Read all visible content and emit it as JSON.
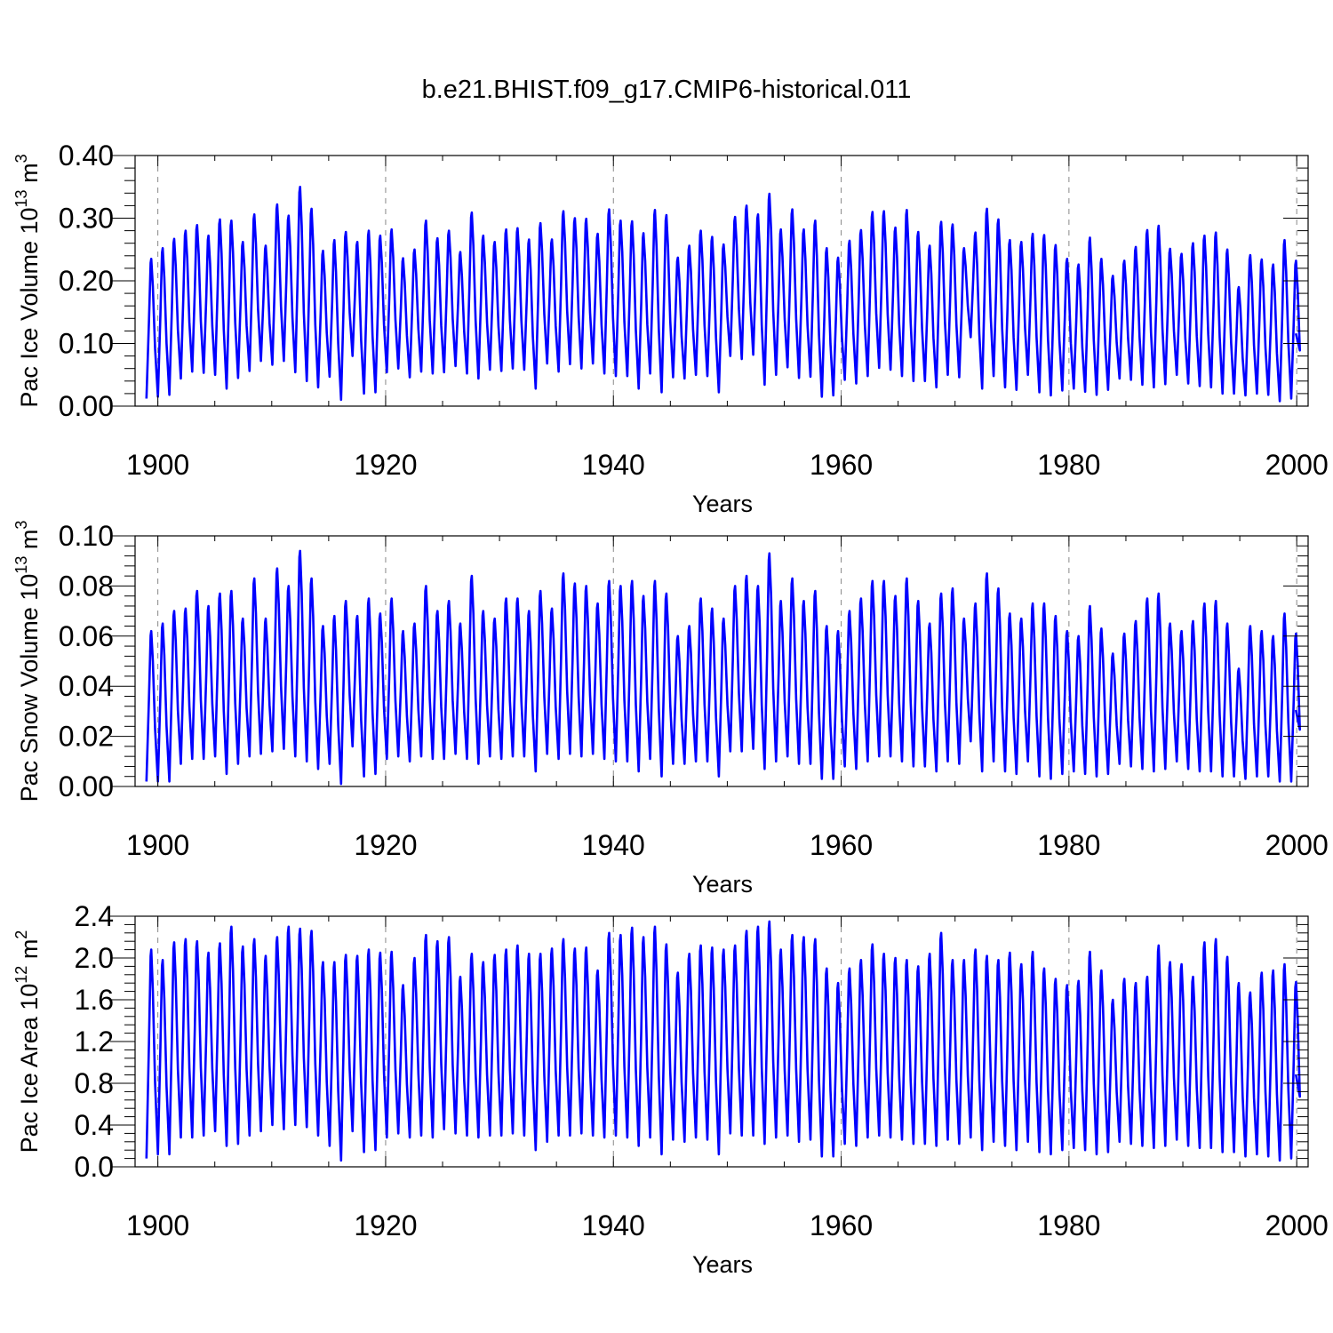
{
  "title": "b.e21.BHIST.f09_g17.CMIP6-historical.011",
  "line_color": "#0000ff",
  "chart_data": [
    {
      "type": "line",
      "xlabel": "Years",
      "ylabel_parts": {
        "text": "Pac Ice Volume 10",
        "exp": "13",
        "unit": " m",
        "unit_exp": "3"
      },
      "xlim": [
        1898,
        2001
      ],
      "ylim": [
        0,
        0.4
      ],
      "yticks": [
        0.0,
        0.1,
        0.2,
        0.3,
        0.4
      ],
      "ytick_labels": [
        "0.00",
        "0.10",
        "0.20",
        "0.30",
        "0.40"
      ],
      "xticks": [
        1900,
        1920,
        1940,
        1960,
        1980,
        2000
      ],
      "xtick_labels": [
        "1900",
        "1920",
        "1940",
        "1960",
        "1980",
        "2000"
      ],
      "grid": "x-dashed",
      "x_start": 1899.0,
      "x_end": 1999.92,
      "series": [
        {
          "peaks": [
            0.235,
            0.252,
            0.267,
            0.28,
            0.289,
            0.272,
            0.298,
            0.296,
            0.262,
            0.306,
            0.256,
            0.322,
            0.304,
            0.35,
            0.315,
            0.248,
            0.265,
            0.278,
            0.262,
            0.28,
            0.272,
            0.282,
            0.236,
            0.25,
            0.296,
            0.268,
            0.28,
            0.246,
            0.309,
            0.272,
            0.262,
            0.282,
            0.284,
            0.266,
            0.292,
            0.266,
            0.311,
            0.3,
            0.299,
            0.275,
            0.314,
            0.296,
            0.295,
            0.276,
            0.313,
            0.305,
            0.237,
            0.256,
            0.28,
            0.27,
            0.258,
            0.302,
            0.32,
            0.306,
            0.339,
            0.282,
            0.314,
            0.282,
            0.296,
            0.252,
            0.237,
            0.264,
            0.281,
            0.31,
            0.311,
            0.285,
            0.313,
            0.278,
            0.256,
            0.294,
            0.29,
            0.252,
            0.277,
            0.315,
            0.298,
            0.265,
            0.262,
            0.275,
            0.273,
            0.257,
            0.235,
            0.226,
            0.269,
            0.235,
            0.208,
            0.232,
            0.254,
            0.281,
            0.288,
            0.251,
            0.243,
            0.26,
            0.272,
            0.277,
            0.25,
            0.19,
            0.241,
            0.234,
            0.226,
            0.265,
            0.232
          ],
          "troughs": [
            0.012,
            0.015,
            0.018,
            0.044,
            0.055,
            0.053,
            0.05,
            0.028,
            0.045,
            0.056,
            0.072,
            0.066,
            0.072,
            0.054,
            0.04,
            0.03,
            0.047,
            0.01,
            0.08,
            0.02,
            0.022,
            0.054,
            0.06,
            0.046,
            0.055,
            0.052,
            0.054,
            0.064,
            0.052,
            0.044,
            0.058,
            0.056,
            0.06,
            0.058,
            0.028,
            0.068,
            0.055,
            0.067,
            0.06,
            0.068,
            0.052,
            0.048,
            0.048,
            0.028,
            0.052,
            0.022,
            0.046,
            0.044,
            0.05,
            0.048,
            0.022,
            0.08,
            0.075,
            0.082,
            0.034,
            0.05,
            0.062,
            0.045,
            0.047,
            0.015,
            0.017,
            0.042,
            0.036,
            0.048,
            0.061,
            0.058,
            0.048,
            0.04,
            0.04,
            0.03,
            0.05,
            0.046,
            0.11,
            0.028,
            0.048,
            0.03,
            0.026,
            0.05,
            0.022,
            0.017,
            0.025,
            0.028,
            0.023,
            0.018,
            0.026,
            0.044,
            0.042,
            0.034,
            0.03,
            0.035,
            0.05,
            0.036,
            0.032,
            0.03,
            0.02,
            0.02,
            0.017,
            0.02,
            0.018,
            0.008,
            0.012
          ]
        }
      ]
    },
    {
      "type": "line",
      "xlabel": "Years",
      "ylabel_parts": {
        "text": "Pac Snow Volume 10",
        "exp": "13",
        "unit": " m",
        "unit_exp": "3"
      },
      "xlim": [
        1898,
        2001
      ],
      "ylim": [
        0,
        0.1
      ],
      "yticks": [
        0.0,
        0.02,
        0.04,
        0.06,
        0.08,
        0.1
      ],
      "ytick_labels": [
        "0.00",
        "0.02",
        "0.04",
        "0.06",
        "0.08",
        "0.10"
      ],
      "xticks": [
        1900,
        1920,
        1940,
        1960,
        1980,
        2000
      ],
      "xtick_labels": [
        "1900",
        "1920",
        "1940",
        "1960",
        "1980",
        "2000"
      ],
      "grid": "x-dashed",
      "x_start": 1899.0,
      "x_end": 1999.92,
      "series": [
        {
          "peaks": [
            0.062,
            0.065,
            0.07,
            0.071,
            0.078,
            0.072,
            0.077,
            0.078,
            0.067,
            0.083,
            0.067,
            0.087,
            0.08,
            0.094,
            0.083,
            0.064,
            0.068,
            0.074,
            0.068,
            0.075,
            0.069,
            0.075,
            0.062,
            0.065,
            0.08,
            0.07,
            0.074,
            0.065,
            0.084,
            0.07,
            0.067,
            0.075,
            0.075,
            0.07,
            0.078,
            0.071,
            0.085,
            0.081,
            0.08,
            0.073,
            0.082,
            0.08,
            0.082,
            0.076,
            0.082,
            0.077,
            0.06,
            0.064,
            0.075,
            0.071,
            0.067,
            0.08,
            0.084,
            0.08,
            0.093,
            0.074,
            0.083,
            0.074,
            0.078,
            0.064,
            0.062,
            0.07,
            0.075,
            0.082,
            0.082,
            0.076,
            0.083,
            0.074,
            0.065,
            0.077,
            0.079,
            0.067,
            0.073,
            0.085,
            0.079,
            0.069,
            0.067,
            0.073,
            0.073,
            0.068,
            0.062,
            0.06,
            0.072,
            0.063,
            0.053,
            0.061,
            0.066,
            0.075,
            0.077,
            0.065,
            0.062,
            0.066,
            0.073,
            0.074,
            0.065,
            0.047,
            0.064,
            0.062,
            0.06,
            0.069,
            0.061
          ],
          "troughs": [
            0.002,
            0.002,
            0.002,
            0.009,
            0.011,
            0.011,
            0.012,
            0.005,
            0.009,
            0.012,
            0.013,
            0.014,
            0.015,
            0.012,
            0.01,
            0.007,
            0.009,
            0.001,
            0.016,
            0.004,
            0.005,
            0.011,
            0.012,
            0.01,
            0.012,
            0.011,
            0.011,
            0.013,
            0.011,
            0.009,
            0.012,
            0.011,
            0.012,
            0.012,
            0.006,
            0.013,
            0.011,
            0.013,
            0.012,
            0.013,
            0.011,
            0.01,
            0.01,
            0.006,
            0.011,
            0.004,
            0.009,
            0.009,
            0.01,
            0.01,
            0.004,
            0.014,
            0.014,
            0.015,
            0.007,
            0.01,
            0.012,
            0.009,
            0.009,
            0.003,
            0.003,
            0.008,
            0.007,
            0.01,
            0.012,
            0.012,
            0.01,
            0.008,
            0.008,
            0.006,
            0.01,
            0.009,
            0.018,
            0.006,
            0.01,
            0.006,
            0.005,
            0.01,
            0.004,
            0.003,
            0.005,
            0.006,
            0.005,
            0.004,
            0.005,
            0.009,
            0.008,
            0.007,
            0.006,
            0.007,
            0.01,
            0.007,
            0.006,
            0.006,
            0.004,
            0.004,
            0.003,
            0.004,
            0.004,
            0.002,
            0.002
          ]
        }
      ]
    },
    {
      "type": "line",
      "xlabel": "Years",
      "ylabel_parts": {
        "text": "Pac Ice Area 10",
        "exp": "12",
        "unit": " m",
        "unit_exp": "2"
      },
      "xlim": [
        1898,
        2001
      ],
      "ylim": [
        0,
        2.4
      ],
      "yticks": [
        0.0,
        0.4,
        0.8,
        1.2,
        1.6,
        2.0,
        2.4
      ],
      "ytick_labels": [
        "0.0",
        "0.4",
        "0.8",
        "1.2",
        "1.6",
        "2.0",
        "2.4"
      ],
      "xticks": [
        1900,
        1920,
        1940,
        1960,
        1980,
        2000
      ],
      "xtick_labels": [
        "1900",
        "1920",
        "1940",
        "1960",
        "1980",
        "2000"
      ],
      "grid": "x-dashed",
      "x_start": 1899.0,
      "x_end": 1999.92,
      "series": [
        {
          "peaks": [
            2.08,
            1.98,
            2.15,
            2.18,
            2.16,
            2.05,
            2.14,
            2.3,
            2.11,
            2.18,
            2.02,
            2.2,
            2.3,
            2.28,
            2.26,
            1.96,
            1.96,
            2.03,
            2.02,
            2.08,
            2.05,
            2.06,
            1.74,
            2.0,
            2.22,
            2.16,
            2.2,
            1.82,
            2.04,
            1.96,
            2.03,
            2.08,
            2.12,
            2.04,
            2.04,
            2.09,
            2.18,
            2.09,
            2.1,
            1.88,
            2.24,
            2.22,
            2.29,
            2.2,
            2.3,
            2.13,
            1.86,
            2.04,
            2.12,
            2.1,
            2.08,
            2.12,
            2.26,
            2.3,
            2.35,
            2.08,
            2.22,
            2.2,
            2.18,
            1.9,
            1.76,
            1.9,
            1.98,
            2.13,
            2.04,
            2.0,
            1.98,
            1.92,
            2.04,
            2.24,
            1.98,
            1.98,
            2.08,
            2.02,
            1.98,
            2.05,
            1.94,
            2.06,
            1.9,
            1.8,
            1.74,
            1.78,
            2.06,
            1.88,
            1.6,
            1.8,
            1.76,
            1.82,
            2.12,
            1.96,
            1.94,
            1.82,
            2.15,
            2.18,
            2.01,
            1.76,
            1.67,
            1.86,
            1.88,
            1.94,
            1.77
          ],
          "troughs": [
            0.08,
            0.12,
            0.12,
            0.28,
            0.28,
            0.3,
            0.34,
            0.2,
            0.22,
            0.3,
            0.34,
            0.4,
            0.36,
            0.4,
            0.38,
            0.3,
            0.2,
            0.06,
            0.34,
            0.14,
            0.16,
            0.28,
            0.32,
            0.28,
            0.3,
            0.28,
            0.36,
            0.32,
            0.3,
            0.28,
            0.3,
            0.3,
            0.32,
            0.3,
            0.16,
            0.24,
            0.3,
            0.3,
            0.32,
            0.3,
            0.28,
            0.3,
            0.28,
            0.2,
            0.28,
            0.12,
            0.26,
            0.24,
            0.28,
            0.26,
            0.12,
            0.32,
            0.3,
            0.3,
            0.22,
            0.28,
            0.3,
            0.24,
            0.26,
            0.1,
            0.1,
            0.22,
            0.2,
            0.28,
            0.3,
            0.28,
            0.26,
            0.22,
            0.22,
            0.2,
            0.26,
            0.22,
            0.28,
            0.16,
            0.24,
            0.2,
            0.16,
            0.24,
            0.14,
            0.12,
            0.16,
            0.18,
            0.16,
            0.12,
            0.14,
            0.24,
            0.22,
            0.2,
            0.18,
            0.2,
            0.26,
            0.2,
            0.18,
            0.18,
            0.14,
            0.14,
            0.1,
            0.12,
            0.1,
            0.06,
            0.08
          ]
        }
      ]
    }
  ]
}
